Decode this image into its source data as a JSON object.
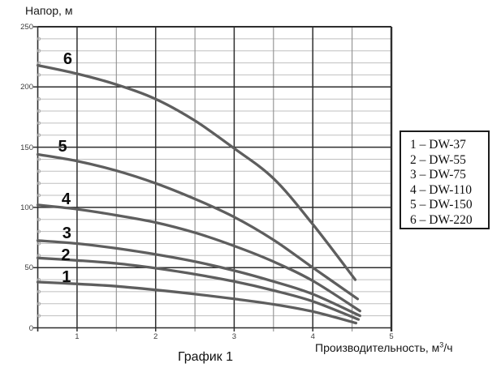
{
  "caption": "График 1",
  "chart_data": {
    "type": "line",
    "title": "График 1",
    "ylabel": "Напор, м",
    "xlabel": "Производительность, м³/ч",
    "xlabel_parts": {
      "prefix": "Производительность, м",
      "sup": "3",
      "suffix": "/ч"
    },
    "xlim": [
      0.5,
      5.0
    ],
    "ylim": [
      0,
      250
    ],
    "x_major_ticks": [
      1,
      2,
      3,
      4,
      5
    ],
    "x_minor_step": 0.5,
    "y_major_ticks": [
      0,
      50,
      100,
      150,
      200,
      250
    ],
    "y_minor_step": 10,
    "grid": "both",
    "legend_position": "right-outside",
    "legend_separator": "–",
    "colors": {
      "curve": "#5e5e5e",
      "major_grid": "#2e2e2e",
      "minor_grid_h": "#bfbfbf",
      "minor_grid_v": "#8f8f8f",
      "text": "#3d3d3d"
    },
    "series": [
      {
        "label": "1",
        "name": "DW-37",
        "label_xy": [
          0.87,
          43
        ],
        "points": [
          [
            0.5,
            38
          ],
          [
            1,
            36.5
          ],
          [
            1.5,
            34.5
          ],
          [
            2,
            31.5
          ],
          [
            2.5,
            28
          ],
          [
            3,
            24
          ],
          [
            3.5,
            19.5
          ],
          [
            4,
            13.5
          ],
          [
            4.55,
            4
          ]
        ]
      },
      {
        "label": "2",
        "name": "DW-55",
        "label_xy": [
          0.86,
          61
        ],
        "points": [
          [
            0.5,
            58
          ],
          [
            1,
            56
          ],
          [
            1.5,
            53.5
          ],
          [
            2,
            49.5
          ],
          [
            2.5,
            44.5
          ],
          [
            3,
            38.5
          ],
          [
            3.5,
            31
          ],
          [
            4,
            22
          ],
          [
            4.58,
            7
          ]
        ]
      },
      {
        "label": "3",
        "name": "DW-75",
        "label_xy": [
          0.875,
          79
        ],
        "points": [
          [
            0.5,
            72.5
          ],
          [
            1,
            70
          ],
          [
            1.5,
            66
          ],
          [
            2,
            61
          ],
          [
            2.5,
            55
          ],
          [
            3,
            47.5
          ],
          [
            3.5,
            38.5
          ],
          [
            4,
            28
          ],
          [
            4.6,
            10
          ]
        ]
      },
      {
        "label": "4",
        "name": "DW-110",
        "label_xy": [
          0.865,
          107
        ],
        "points": [
          [
            0.5,
            102
          ],
          [
            1,
            98.5
          ],
          [
            1.5,
            93.5
          ],
          [
            2,
            87.5
          ],
          [
            2.5,
            79
          ],
          [
            3,
            68
          ],
          [
            3.5,
            55
          ],
          [
            4,
            39
          ],
          [
            4.6,
            14
          ]
        ]
      },
      {
        "label": "5",
        "name": "DW-150",
        "label_xy": [
          0.82,
          151
        ],
        "points": [
          [
            0.5,
            144
          ],
          [
            1,
            138.5
          ],
          [
            1.5,
            130.5
          ],
          [
            2,
            120
          ],
          [
            2.5,
            107
          ],
          [
            3,
            92
          ],
          [
            3.5,
            73
          ],
          [
            4,
            50
          ],
          [
            4.57,
            24
          ]
        ]
      },
      {
        "label": "6",
        "name": "DW-220",
        "label_xy": [
          0.886,
          224
        ],
        "points": [
          [
            0.5,
            218
          ],
          [
            1,
            211
          ],
          [
            1.5,
            202
          ],
          [
            2,
            190
          ],
          [
            2.5,
            172
          ],
          [
            3,
            149
          ],
          [
            3.5,
            124
          ],
          [
            4,
            86
          ],
          [
            4.54,
            40
          ]
        ]
      }
    ]
  }
}
